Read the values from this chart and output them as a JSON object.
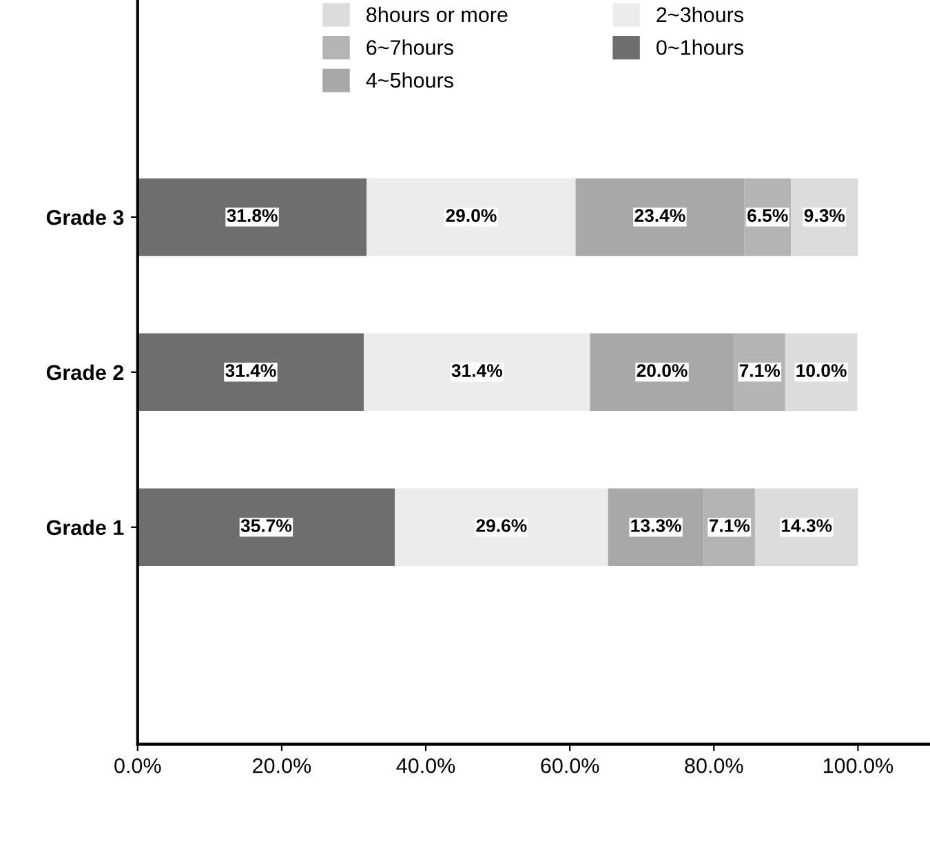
{
  "chart_data": {
    "type": "bar",
    "orientation": "horizontal",
    "stacked": true,
    "categories": [
      "Grade 3",
      "Grade 2",
      "Grade 1"
    ],
    "series": [
      {
        "name": "0~1hours",
        "color": "#6e6e6e",
        "values": [
          31.8,
          31.4,
          35.7
        ],
        "value_labels": [
          "31.8%",
          "31.4%",
          "35.7%"
        ]
      },
      {
        "name": "2~3hours",
        "color": "#ececec",
        "values": [
          29.0,
          31.4,
          29.6
        ],
        "value_labels": [
          "29.0%",
          "31.4%",
          "29.6%"
        ]
      },
      {
        "name": "4~5hours",
        "color": "#a8a8a8",
        "values": [
          23.4,
          20.0,
          13.3
        ],
        "value_labels": [
          "23.4%",
          "20.0%",
          "13.3%"
        ]
      },
      {
        "name": "6~7hours",
        "color": "#b4b4b4",
        "values": [
          6.5,
          7.1,
          7.1
        ],
        "value_labels": [
          "6.5%",
          "7.1%",
          "7.1%"
        ]
      },
      {
        "name": "8hours or more",
        "color": "#dcdcdc",
        "values": [
          9.3,
          10.0,
          14.3
        ],
        "value_labels": [
          "9.3%",
          "10.0%",
          "14.3%"
        ]
      }
    ],
    "xlim": [
      0,
      110
    ],
    "xticks": [
      {
        "value": 0,
        "label": "0.0%"
      },
      {
        "value": 20,
        "label": "20.0%"
      },
      {
        "value": 40,
        "label": "40.0%"
      },
      {
        "value": 60,
        "label": "60.0%"
      },
      {
        "value": 80,
        "label": "80.0%"
      },
      {
        "value": 100,
        "label": "100.0%"
      }
    ],
    "grid": false,
    "legend": "top"
  }
}
